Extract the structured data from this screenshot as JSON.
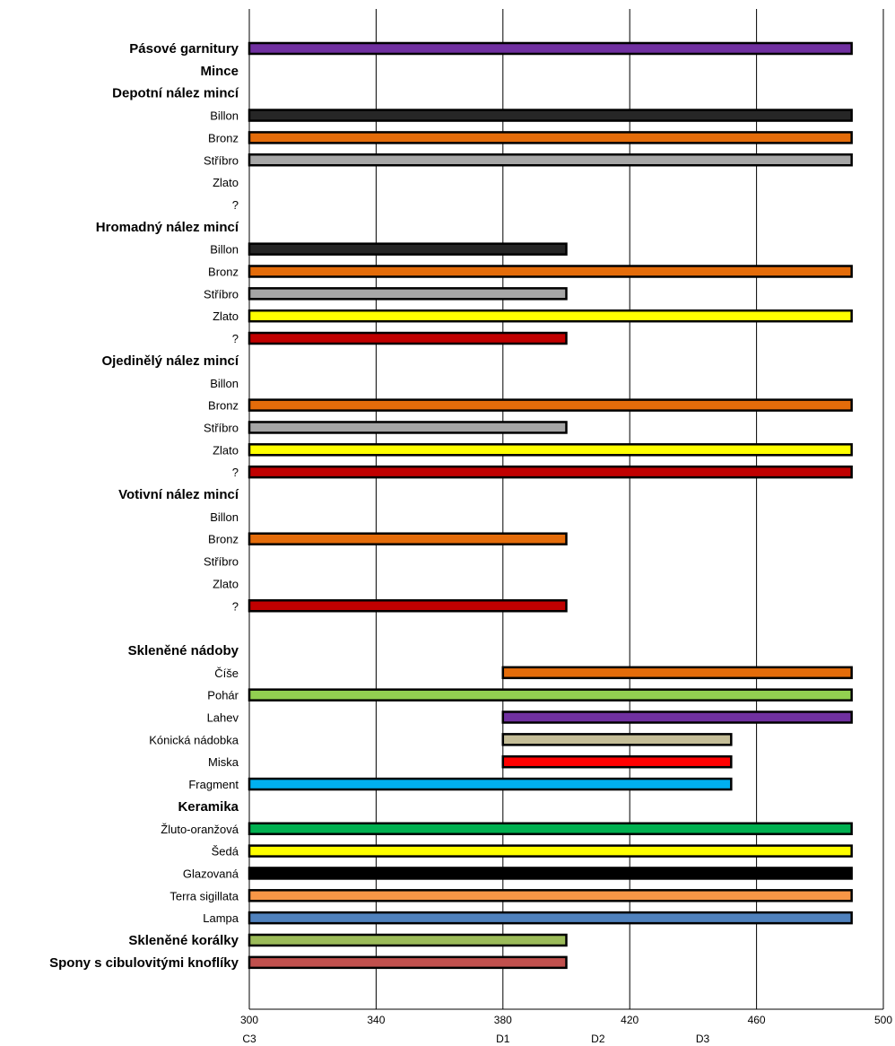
{
  "chart_data": {
    "type": "bar",
    "orientation": "horizontal-range",
    "title": "",
    "xlabel": "",
    "ylabel": "",
    "xlim": [
      300,
      500
    ],
    "x_ticks": [
      300,
      340,
      380,
      420,
      460,
      500
    ],
    "grid": "vertical",
    "phase_labels": [
      {
        "text": "C3",
        "x": 300
      },
      {
        "text": "D1",
        "x": 380
      },
      {
        "text": "D2",
        "x": 410
      },
      {
        "text": "D3",
        "x": 443
      }
    ],
    "rows": [
      {
        "label": "Pásové garnitury",
        "header": true,
        "start": 300,
        "end": 490,
        "color": "#7030a0"
      },
      {
        "label": "Mince",
        "header": true
      },
      {
        "label": "Depotní nález mincí",
        "header": true
      },
      {
        "label": "Billon",
        "start": 300,
        "end": 490,
        "color": "#262626"
      },
      {
        "label": "Bronz",
        "start": 300,
        "end": 490,
        "color": "#e46c0a"
      },
      {
        "label": "Stříbro",
        "start": 300,
        "end": 490,
        "color": "#a6a6a6"
      },
      {
        "label": "Zlato"
      },
      {
        "label": "?"
      },
      {
        "label": "Hromadný nález mincí",
        "header": true
      },
      {
        "label": "Billon",
        "start": 300,
        "end": 400,
        "color": "#262626"
      },
      {
        "label": "Bronz",
        "start": 300,
        "end": 490,
        "color": "#e46c0a"
      },
      {
        "label": "Stříbro",
        "start": 300,
        "end": 400,
        "color": "#a6a6a6"
      },
      {
        "label": "Zlato",
        "start": 300,
        "end": 490,
        "color": "#ffff00"
      },
      {
        "label": "?",
        "start": 300,
        "end": 400,
        "color": "#c00000"
      },
      {
        "label": "Ojedinělý nález mincí",
        "header": true
      },
      {
        "label": "Billon"
      },
      {
        "label": "Bronz",
        "start": 300,
        "end": 490,
        "color": "#e46c0a"
      },
      {
        "label": "Stříbro",
        "start": 300,
        "end": 400,
        "color": "#a6a6a6"
      },
      {
        "label": "Zlato",
        "start": 300,
        "end": 490,
        "color": "#ffff00"
      },
      {
        "label": "?",
        "start": 300,
        "end": 490,
        "color": "#c00000"
      },
      {
        "label": "Votivní nález mincí",
        "header": true
      },
      {
        "label": "Billon"
      },
      {
        "label": "Bronz",
        "start": 300,
        "end": 400,
        "color": "#e46c0a"
      },
      {
        "label": "Stříbro"
      },
      {
        "label": "Zlato"
      },
      {
        "label": "?",
        "start": 300,
        "end": 400,
        "color": "#c00000"
      },
      {
        "label": "",
        "spacer": true
      },
      {
        "label": "Skleněné nádoby",
        "header": true
      },
      {
        "label": "Číše",
        "start": 380,
        "end": 490,
        "color": "#e46c0a"
      },
      {
        "label": "Pohár",
        "start": 300,
        "end": 490,
        "color": "#92d050"
      },
      {
        "label": "Lahev",
        "start": 380,
        "end": 490,
        "color": "#7030a0"
      },
      {
        "label": "Kónická nádobka",
        "start": 380,
        "end": 452,
        "color": "#c4bd97"
      },
      {
        "label": "Miska",
        "start": 380,
        "end": 452,
        "color": "#ff0000"
      },
      {
        "label": "Fragment",
        "start": 300,
        "end": 452,
        "color": "#00b0f0"
      },
      {
        "label": "Keramika",
        "header": true
      },
      {
        "label": "Žluto-oranžová",
        "start": 300,
        "end": 490,
        "color": "#00b050"
      },
      {
        "label": "Šedá",
        "start": 300,
        "end": 490,
        "color": "#ffff00"
      },
      {
        "label": "Glazovaná",
        "start": 300,
        "end": 490,
        "color": "#000000"
      },
      {
        "label": "Terra sigillata",
        "start": 300,
        "end": 490,
        "color": "#f79646"
      },
      {
        "label": "Lampa",
        "start": 300,
        "end": 490,
        "color": "#4f81bd"
      },
      {
        "label": "Skleněné korálky",
        "header": true,
        "start": 300,
        "end": 400,
        "color": "#9bbb59"
      },
      {
        "label": "Spony s cibulovitými knoflíky",
        "header": true,
        "start": 300,
        "end": 400,
        "color": "#c0504d"
      }
    ]
  }
}
